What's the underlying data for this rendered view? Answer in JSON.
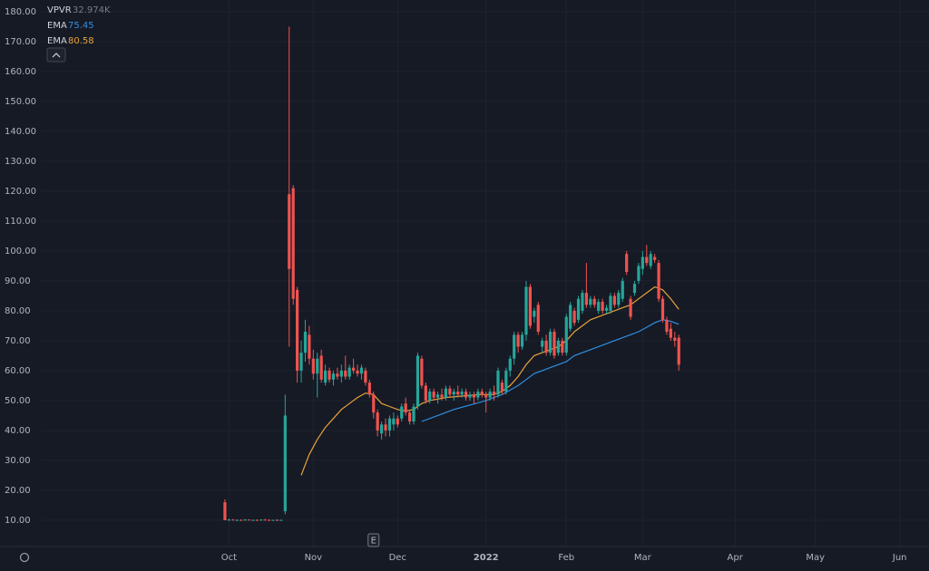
{
  "chart_data": {
    "type": "candlestick",
    "up_color": "#26a69a",
    "down_color": "#ef5350",
    "x": [
      -1,
      0,
      1,
      2,
      3,
      4,
      5,
      6,
      7,
      8,
      9,
      10,
      11,
      12,
      13,
      14,
      15,
      16,
      17,
      18,
      19,
      20,
      21,
      22,
      23,
      24,
      25,
      26,
      27,
      28,
      29,
      30,
      31,
      32,
      33,
      34,
      35,
      36,
      37,
      38,
      39,
      40,
      41,
      42,
      43,
      44,
      45,
      46,
      47,
      48,
      49,
      50,
      51,
      52,
      53,
      54,
      55,
      56,
      57,
      58,
      59,
      60,
      61,
      62,
      63,
      64,
      65,
      66,
      67,
      68,
      69,
      70,
      71,
      72,
      73,
      74,
      75,
      76,
      77,
      78,
      79,
      80,
      81,
      82,
      83,
      84,
      85,
      86,
      87,
      88,
      89,
      90,
      91,
      92,
      93,
      94,
      95,
      96,
      97,
      98,
      99,
      100,
      101,
      102,
      103,
      104,
      105,
      106,
      107,
      108,
      109,
      110,
      111,
      112
    ],
    "open": [
      16,
      10,
      10.2,
      10,
      10.1,
      10,
      10.2,
      10,
      10.1,
      10,
      10.2,
      10.1,
      10,
      10.1,
      10,
      13,
      119,
      121,
      87,
      60,
      66,
      72,
      64,
      59,
      65,
      56,
      60,
      57,
      59,
      58,
      60,
      58,
      61,
      60,
      59,
      60,
      56,
      52,
      46,
      39,
      42,
      40,
      42,
      44,
      44,
      49,
      46,
      43,
      48,
      64,
      55,
      50,
      53,
      51,
      52,
      51,
      54,
      52,
      53,
      52,
      53,
      51,
      52,
      51,
      53,
      52,
      51,
      53,
      52,
      56,
      53,
      60,
      64,
      72,
      68,
      72,
      88,
      78,
      82,
      68,
      70,
      66,
      73,
      66,
      70,
      66,
      74,
      80,
      77,
      80,
      86,
      82,
      84,
      80,
      83,
      80,
      80,
      85,
      82,
      84,
      99,
      84,
      86,
      90,
      94,
      98,
      95,
      98,
      96,
      84,
      77,
      74,
      71,
      71
    ],
    "high": [
      17,
      10.5,
      10.4,
      10.3,
      10.3,
      10.4,
      10.3,
      10.2,
      10.3,
      10.3,
      10.4,
      10.3,
      10.2,
      10.3,
      10.2,
      52,
      175,
      122,
      88,
      70,
      77,
      75,
      67,
      66,
      67,
      62,
      61,
      60,
      61,
      62,
      65,
      62,
      64,
      62,
      62,
      61,
      57,
      53,
      47,
      43,
      44,
      45,
      46,
      45,
      49,
      51,
      47,
      49,
      66,
      65,
      56,
      54,
      54,
      53,
      54,
      55,
      55,
      54,
      55,
      54,
      54,
      53,
      53,
      54,
      54,
      53,
      54,
      55,
      61,
      57,
      61,
      65,
      73,
      73,
      73,
      90,
      89,
      81,
      83,
      71,
      72,
      74,
      74,
      71,
      71,
      79,
      83,
      81,
      85,
      87,
      96,
      85,
      85,
      84,
      84,
      82,
      86,
      86,
      87,
      91,
      100,
      85,
      90,
      96,
      100,
      102,
      100,
      99,
      97,
      85,
      78,
      76,
      73,
      72
    ],
    "low": [
      10,
      9.8,
      9.9,
      9.8,
      9.9,
      9.8,
      9.9,
      9.8,
      9.9,
      9.8,
      9.9,
      9.9,
      9.8,
      9.9,
      9.8,
      12,
      68,
      82,
      56,
      56,
      63,
      62,
      57,
      51,
      56,
      55,
      56,
      55,
      57,
      56,
      57,
      57,
      59,
      58,
      57,
      55,
      51,
      44,
      38,
      37,
      38,
      38,
      40,
      41,
      43,
      45,
      42,
      42,
      47,
      54,
      49,
      49,
      50,
      49,
      50,
      50,
      51,
      50,
      51,
      51,
      50,
      50,
      49,
      50,
      51,
      46,
      50,
      50,
      51,
      52,
      52,
      58,
      62,
      66,
      67,
      70,
      74,
      76,
      72,
      66,
      65,
      65,
      64,
      65,
      65,
      65,
      73,
      75,
      76,
      79,
      81,
      81,
      81,
      79,
      79,
      79,
      79,
      81,
      81,
      83,
      92,
      77,
      85,
      89,
      92,
      95,
      94,
      96,
      83,
      76,
      72,
      70,
      68,
      60
    ],
    "close": [
      10,
      10.2,
      10,
      10.1,
      10,
      10.2,
      10,
      10.1,
      10,
      10.2,
      10.1,
      10,
      10.1,
      10,
      10.1,
      45,
      94,
      84,
      60,
      66,
      73,
      64,
      59,
      64,
      57,
      60,
      57,
      59,
      58,
      60,
      58,
      61,
      60,
      59,
      61,
      56,
      52,
      46,
      40,
      42,
      40,
      44,
      44,
      42,
      48,
      46,
      43,
      48,
      65,
      55,
      50,
      53,
      51,
      52,
      51,
      54,
      52,
      53,
      52,
      53,
      51,
      52,
      51,
      53,
      52,
      51,
      53,
      52,
      60,
      53,
      60,
      64,
      72,
      68,
      72,
      88,
      75,
      80,
      73,
      70,
      66,
      73,
      65,
      70,
      66,
      78,
      82,
      76,
      84,
      86,
      82,
      84,
      82,
      83,
      80,
      81,
      85,
      82,
      86,
      90,
      93,
      78,
      89,
      95,
      98,
      96,
      99,
      97,
      84,
      77,
      73,
      71,
      70,
      62
    ],
    "series": [
      {
        "name": "EMA",
        "color": "#2f8fe0",
        "value": 75.45,
        "x": [
          48,
          52,
          56,
          60,
          64,
          66,
          68,
          70,
          72,
          74,
          76,
          78,
          80,
          82,
          84,
          86,
          88,
          90,
          94,
          98,
          100,
          102,
          104,
          106,
          108,
          110,
          112
        ],
        "values": [
          43,
          45,
          47,
          48.5,
          50,
          51,
          52,
          53.5,
          55,
          57,
          59,
          60,
          61,
          62,
          63,
          65,
          66,
          67,
          69,
          71,
          72,
          73,
          74.5,
          76,
          77,
          76.5,
          75.5
        ]
      },
      {
        "name": "EMA",
        "color": "#e8a23a",
        "value": 80.58,
        "x": [
          18,
          20,
          22,
          24,
          26,
          28,
          30,
          32,
          34,
          36,
          38,
          40,
          42,
          44,
          46,
          48,
          50,
          54,
          58,
          62,
          66,
          68,
          70,
          72,
          74,
          76,
          78,
          80,
          82,
          84,
          86,
          88,
          90,
          94,
          98,
          100,
          102,
          104,
          106,
          108,
          110,
          112
        ],
        "values": [
          25,
          32,
          37,
          41,
          44,
          47,
          49,
          51,
          52.5,
          52,
          49,
          48,
          47,
          46.5,
          47,
          49,
          50,
          51,
          51.5,
          52,
          52,
          53,
          55,
          58,
          62,
          65,
          66,
          67,
          68,
          70,
          73,
          75,
          77,
          79,
          81,
          82,
          84,
          86,
          88,
          87,
          84,
          80.5
        ]
      }
    ],
    "indicator": {
      "name": "VPVR",
      "value": 32974,
      "value_label": "32.974K"
    },
    "annotations": [
      {
        "text": "E",
        "x": 36
      }
    ],
    "xlim": [
      -57,
      170
    ],
    "xticks": [
      {
        "value": 0,
        "label": "Oct"
      },
      {
        "value": 21,
        "label": "Nov"
      },
      {
        "value": 42,
        "label": "Dec"
      },
      {
        "value": 64,
        "label": "2022"
      },
      {
        "value": 84,
        "label": "Feb"
      },
      {
        "value": 103,
        "label": "Mar"
      },
      {
        "value": 126,
        "label": "Apr"
      },
      {
        "value": 146,
        "label": "May"
      },
      {
        "value": 167,
        "label": "Jun"
      }
    ],
    "ylim": [
      1.2,
      183.9
    ],
    "yticks": [
      {
        "value": 10,
        "label": "10.00"
      },
      {
        "value": 20,
        "label": "20.00"
      },
      {
        "value": 30,
        "label": "30.00"
      },
      {
        "value": 40,
        "label": "40.00"
      },
      {
        "value": 50,
        "label": "50.00"
      },
      {
        "value": 60,
        "label": "60.00"
      },
      {
        "value": 70,
        "label": "70.00"
      },
      {
        "value": 80,
        "label": "80.00"
      },
      {
        "value": 90,
        "label": "90.00"
      },
      {
        "value": 100,
        "label": "100.00"
      },
      {
        "value": 110,
        "label": "110.00"
      },
      {
        "value": 120,
        "label": "120.00"
      },
      {
        "value": 130,
        "label": "130.00"
      },
      {
        "value": 140,
        "label": "140.00"
      },
      {
        "value": 150,
        "label": "150.00"
      },
      {
        "value": 160,
        "label": "160.00"
      },
      {
        "value": 170,
        "label": "170.00"
      },
      {
        "value": 180,
        "label": "180.00"
      }
    ],
    "grid": true
  }
}
